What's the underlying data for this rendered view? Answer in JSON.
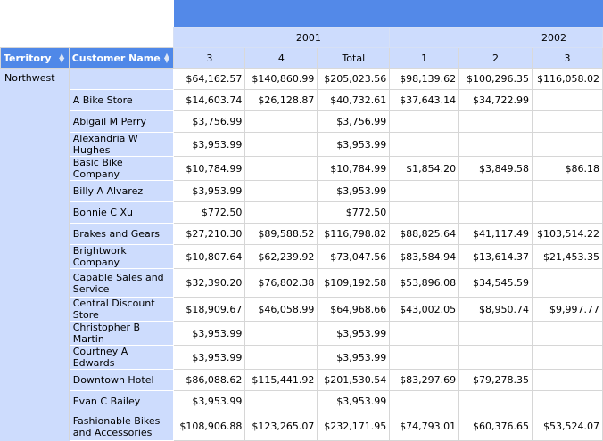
{
  "colors": {
    "header_blue": "#5389e8",
    "light_blue": "#cddcfd"
  },
  "row_headers": {
    "territory": "Territory",
    "customer": "Customer Name",
    "sort_icon": "sort-up-down-icon"
  },
  "years": [
    {
      "label": "2001",
      "span": 3
    },
    {
      "label": "2002",
      "span": 3
    }
  ],
  "quarters": [
    "3",
    "4",
    "Total",
    "1",
    "2",
    "3"
  ],
  "territory": "Northwest",
  "rows": [
    {
      "name": "",
      "values": [
        "$64,162.57",
        "$140,860.99",
        "$205,023.56",
        "$98,139.62",
        "$100,296.35",
        "$116,058.02"
      ]
    },
    {
      "name": "A Bike Store",
      "values": [
        "$14,603.74",
        "$26,128.87",
        "$40,732.61",
        "$37,643.14",
        "$34,722.99",
        ""
      ]
    },
    {
      "name": "Abigail M Perry",
      "values": [
        "$3,756.99",
        "",
        "$3,756.99",
        "",
        "",
        ""
      ]
    },
    {
      "name": "Alexandria W Hughes",
      "values": [
        "$3,953.99",
        "",
        "$3,953.99",
        "",
        "",
        ""
      ]
    },
    {
      "name": "Basic Bike Company",
      "values": [
        "$10,784.99",
        "",
        "$10,784.99",
        "$1,854.20",
        "$3,849.58",
        "$86.18"
      ]
    },
    {
      "name": "Billy A Alvarez",
      "values": [
        "$3,953.99",
        "",
        "$3,953.99",
        "",
        "",
        ""
      ]
    },
    {
      "name": "Bonnie C Xu",
      "values": [
        "$772.50",
        "",
        "$772.50",
        "",
        "",
        ""
      ]
    },
    {
      "name": "Brakes and Gears",
      "values": [
        "$27,210.30",
        "$89,588.52",
        "$116,798.82",
        "$88,825.64",
        "$41,117.49",
        "$103,514.22"
      ]
    },
    {
      "name": "Brightwork Company",
      "values": [
        "$10,807.64",
        "$62,239.92",
        "$73,047.56",
        "$83,584.94",
        "$13,614.37",
        "$21,453.35"
      ]
    },
    {
      "name": "Capable Sales and Service",
      "values": [
        "$32,390.20",
        "$76,802.38",
        "$109,192.58",
        "$53,896.08",
        "$34,545.59",
        ""
      ],
      "tall": true
    },
    {
      "name": "Central Discount Store",
      "values": [
        "$18,909.67",
        "$46,058.99",
        "$64,968.66",
        "$43,002.05",
        "$8,950.74",
        "$9,997.77"
      ]
    },
    {
      "name": "Christopher B Martin",
      "values": [
        "$3,953.99",
        "",
        "$3,953.99",
        "",
        "",
        ""
      ]
    },
    {
      "name": "Courtney A Edwards",
      "values": [
        "$3,953.99",
        "",
        "$3,953.99",
        "",
        "",
        ""
      ]
    },
    {
      "name": "Downtown Hotel",
      "values": [
        "$86,088.62",
        "$115,441.92",
        "$201,530.54",
        "$83,297.69",
        "$79,278.35",
        ""
      ]
    },
    {
      "name": "Evan C Bailey",
      "values": [
        "$3,953.99",
        "",
        "$3,953.99",
        "",
        "",
        ""
      ]
    },
    {
      "name": "Fashionable Bikes and Accessories",
      "values": [
        "$108,906.88",
        "$123,265.07",
        "$232,171.95",
        "$74,793.01",
        "$60,376.65",
        "$53,524.07"
      ],
      "tall": true
    }
  ]
}
